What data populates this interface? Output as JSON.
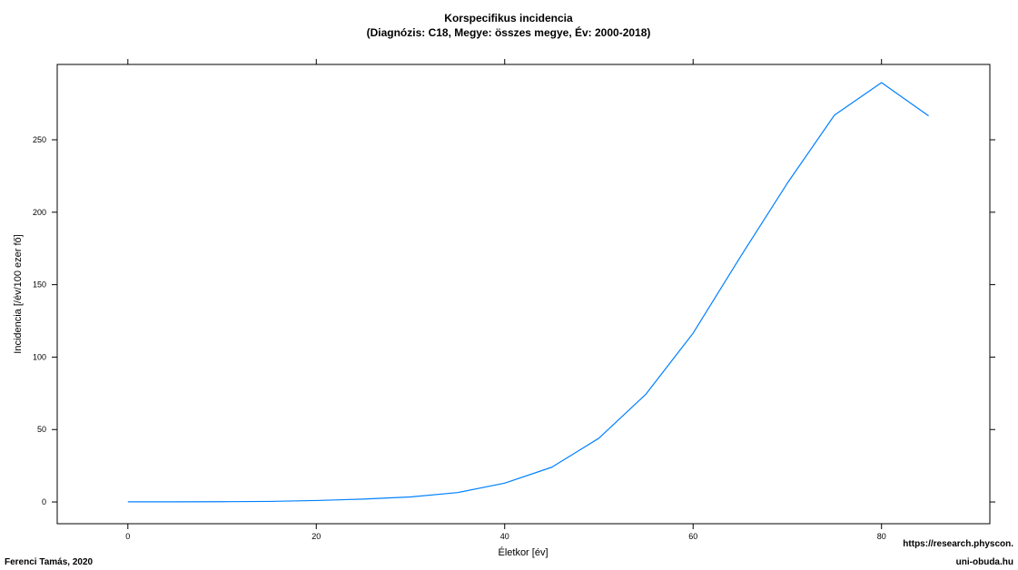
{
  "chart_data": {
    "type": "line",
    "title": "Korspecifikus incidencia",
    "subtitle": "(Diagnózis: C18, Megye: összes megye, Év: 2000-2018)",
    "xlabel": "Életkor [év]",
    "ylabel": "Incidencia [/év/100 ezer fő]",
    "xlim": [
      -7.5,
      91.5
    ],
    "ylim": [
      -15,
      302
    ],
    "x_ticks": [
      0,
      20,
      40,
      60,
      80
    ],
    "y_ticks": [
      0,
      50,
      100,
      150,
      200,
      250
    ],
    "grid": false,
    "legend": "none",
    "line_color": "#0080ff",
    "series": [
      {
        "x": [
          0,
          5,
          10,
          15,
          20,
          25,
          30,
          35,
          40,
          45,
          50,
          55,
          60,
          65,
          70,
          75,
          80,
          85
        ],
        "values": [
          0.1,
          0.1,
          0.2,
          0.4,
          1.0,
          2.0,
          3.5,
          6.5,
          13,
          24,
          44,
          74.5,
          116.5,
          169,
          220,
          267,
          289.5,
          266.5
        ]
      }
    ]
  },
  "footer": {
    "author": "Ferenci Tamás, 2020",
    "url_line1": "https://research.physcon.",
    "url_line2": "uni-obuda.hu"
  }
}
